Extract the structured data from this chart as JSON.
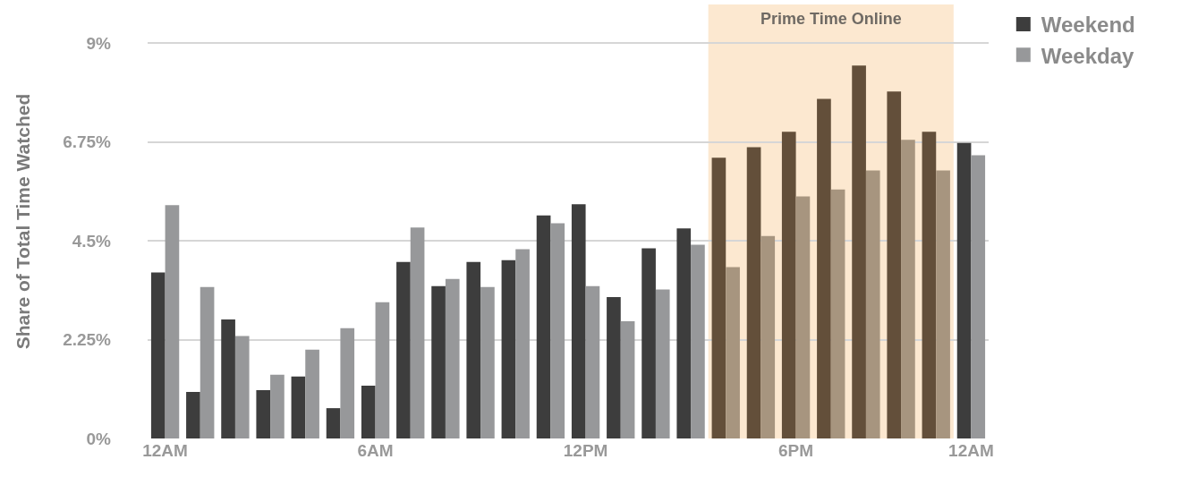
{
  "chart_data": {
    "type": "bar",
    "ylabel": "Share of Total Time Watched",
    "categories": [
      "12AM",
      null,
      null,
      null,
      null,
      null,
      "6AM",
      null,
      null,
      null,
      null,
      null,
      "12PM",
      null,
      null,
      null,
      null,
      null,
      "6PM",
      null,
      null,
      null,
      null,
      "12AM"
    ],
    "ylim": [
      0,
      9.88
    ],
    "yticks": [
      {
        "value": 0,
        "label": "0%"
      },
      {
        "value": 2.25,
        "label": "2.25%"
      },
      {
        "value": 4.5,
        "label": "4.5%"
      },
      {
        "value": 6.75,
        "label": "6.75%"
      },
      {
        "value": 9,
        "label": "9%"
      }
    ],
    "grid": "y",
    "legend": "top right",
    "annotations": [
      "Prime Time Online"
    ],
    "series": [
      {
        "name": "Weekend",
        "color": "#3d3d3d",
        "colors": [
          "#3d3d3d",
          "#3d3d3d",
          "#3d3d3d",
          "#3d3d3d",
          "#3d3d3d",
          "#3d3d3d",
          "#3d3d3d",
          "#3d3d3d",
          "#3d3d3d",
          "#3d3d3d",
          "#3d3d3d",
          "#3d3d3d",
          "#3d3d3d",
          "#3d3d3d",
          "#3d3d3d",
          "#3d3d3d",
          "#634f3a",
          "#634f3a",
          "#634f3a",
          "#634f3a",
          "#634f3a",
          "#634f3a",
          "#634f3a",
          "#3d3d3d"
        ],
        "values": [
          3.78,
          1.06,
          2.71,
          1.1,
          1.41,
          0.69,
          1.2,
          4.02,
          3.47,
          4.02,
          4.06,
          5.08,
          5.33,
          3.22,
          4.33,
          4.78,
          6.39,
          6.63,
          6.98,
          7.73,
          8.49,
          7.9,
          6.98,
          6.73
        ]
      },
      {
        "name": "Weekday",
        "color": "#97989a",
        "colors": [
          "#97989a",
          "#97989a",
          "#97989a",
          "#97989a",
          "#97989a",
          "#97989a",
          "#97989a",
          "#97989a",
          "#97989a",
          "#97989a",
          "#97989a",
          "#97989a",
          "#97989a",
          "#97989a",
          "#97989a",
          "#97989a",
          "#a7957f",
          "#a7957f",
          "#a7957f",
          "#a7957f",
          "#a7957f",
          "#a7957f",
          "#a7957f",
          "#97989a"
        ],
        "values": [
          5.31,
          3.45,
          2.33,
          1.45,
          2.02,
          2.51,
          3.1,
          4.8,
          3.63,
          3.45,
          4.31,
          4.9,
          3.47,
          2.67,
          3.39,
          4.41,
          3.9,
          4.61,
          5.51,
          5.67,
          6.1,
          6.8,
          6.1,
          6.45
        ]
      }
    ]
  }
}
